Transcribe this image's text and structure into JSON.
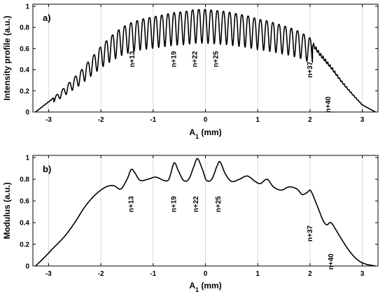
{
  "chart_data": [
    {
      "type": "line",
      "panel_label": "a)",
      "xlabel": "A",
      "xlabel_sub": "1",
      "xlabel_unit": " (mm)",
      "ylabel": "Intensity profile (a.u.)",
      "xlim": [
        -3.3,
        3.3
      ],
      "ylim": [
        0,
        1.02
      ],
      "xticks": [
        -3,
        -2,
        -1,
        0,
        1,
        2,
        3
      ],
      "yticks": [
        0,
        0.2,
        0.4,
        0.6,
        0.8,
        1
      ],
      "ytick_labels": [
        "0",
        "0.2",
        "0.4",
        "0.6",
        "0.8",
        "1"
      ],
      "grid": "vertical",
      "envelope": {
        "x": [
          -3.25,
          -3.0,
          -2.8,
          -2.6,
          -2.4,
          -2.2,
          -2.0,
          -1.8,
          -1.6,
          -1.4,
          -1.2,
          -1.0,
          -0.8,
          -0.6,
          -0.4,
          -0.2,
          0.0,
          0.2,
          0.4,
          0.6,
          0.8,
          1.0,
          1.2,
          1.4,
          1.6,
          1.8,
          2.0,
          2.2,
          2.4,
          2.6,
          2.8,
          3.0,
          3.25
        ],
        "y": [
          0.0,
          0.1,
          0.18,
          0.28,
          0.38,
          0.5,
          0.62,
          0.72,
          0.8,
          0.85,
          0.88,
          0.9,
          0.92,
          0.94,
          0.95,
          0.97,
          0.97,
          0.96,
          0.95,
          0.93,
          0.91,
          0.88,
          0.86,
          0.83,
          0.8,
          0.76,
          0.7,
          0.56,
          0.44,
          0.3,
          0.18,
          0.07,
          0.0
        ]
      },
      "fringe_period_mm": 0.118,
      "fringe_zone_mm": [
        -2.9,
        2.05
      ],
      "annotations": [
        {
          "text": "n+13",
          "x": -1.4,
          "y": 0.5
        },
        {
          "text": "n+19",
          "x": -0.6,
          "y": 0.5
        },
        {
          "text": "n+22",
          "x": -0.2,
          "y": 0.5
        },
        {
          "text": "n+25",
          "x": 0.2,
          "y": 0.5
        },
        {
          "text": "n+37",
          "x": 2.0,
          "y": 0.4
        },
        {
          "text": "n+40",
          "x": 2.35,
          "y": 0.07
        }
      ]
    },
    {
      "type": "line",
      "panel_label": "b)",
      "xlabel": "A",
      "xlabel_sub": "1",
      "xlabel_unit": " (mm)",
      "ylabel": "Modulus (a.u.)",
      "xlim": [
        -3.3,
        3.3
      ],
      "ylim": [
        0,
        1.02
      ],
      "xticks": [
        -3,
        -2,
        -1,
        0,
        1,
        2,
        3
      ],
      "yticks": [
        0,
        0.2,
        0.4,
        0.6,
        0.8,
        1
      ],
      "ytick_labels": [
        "0",
        "0.2",
        "0.4",
        "0.6",
        "0.8",
        "1"
      ],
      "grid": "vertical",
      "series": [
        {
          "x": [
            -3.25,
            -3.1,
            -2.9,
            -2.7,
            -2.5,
            -2.3,
            -2.1,
            -1.9,
            -1.75,
            -1.62,
            -1.5,
            -1.42,
            -1.35,
            -1.25,
            -1.1,
            -0.95,
            -0.8,
            -0.7,
            -0.6,
            -0.52,
            -0.42,
            -0.32,
            -0.22,
            -0.15,
            -0.05,
            0.02,
            0.12,
            0.22,
            0.28,
            0.38,
            0.5,
            0.65,
            0.8,
            0.95,
            1.05,
            1.18,
            1.3,
            1.45,
            1.6,
            1.75,
            1.85,
            1.95,
            2.0,
            2.05,
            2.15,
            2.25,
            2.32,
            2.4,
            2.5,
            2.6,
            2.75,
            2.9,
            3.05,
            3.25
          ],
          "y": [
            0.0,
            0.07,
            0.17,
            0.27,
            0.4,
            0.55,
            0.66,
            0.73,
            0.74,
            0.71,
            0.8,
            0.89,
            0.86,
            0.79,
            0.8,
            0.82,
            0.79,
            0.8,
            0.95,
            0.88,
            0.79,
            0.8,
            0.92,
            0.99,
            0.88,
            0.79,
            0.8,
            0.92,
            0.96,
            0.85,
            0.78,
            0.8,
            0.83,
            0.78,
            0.76,
            0.8,
            0.73,
            0.7,
            0.73,
            0.71,
            0.66,
            0.68,
            0.7,
            0.66,
            0.54,
            0.42,
            0.38,
            0.4,
            0.33,
            0.25,
            0.14,
            0.06,
            0.02,
            0.0
          ]
        }
      ],
      "annotations": [
        {
          "text": "n+13",
          "x": -1.42,
          "y": 0.57
        },
        {
          "text": "n+19",
          "x": -0.6,
          "y": 0.57
        },
        {
          "text": "n+22",
          "x": -0.18,
          "y": 0.57
        },
        {
          "text": "n+25",
          "x": 0.25,
          "y": 0.57
        },
        {
          "text": "n+37",
          "x": 2.0,
          "y": 0.3
        },
        {
          "text": "n+40",
          "x": 2.4,
          "y": 0.04
        }
      ]
    }
  ]
}
